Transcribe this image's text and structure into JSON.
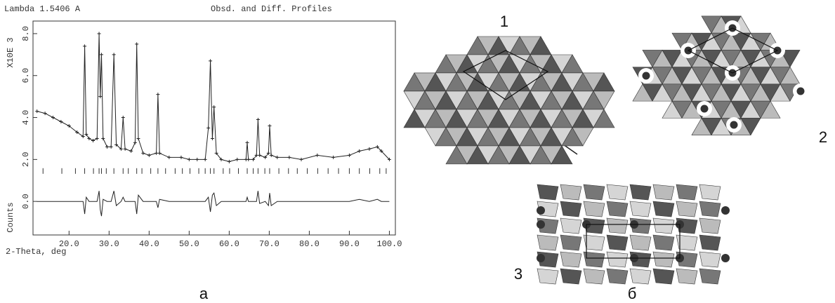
{
  "chart_data": {
    "type": "line",
    "header_left": "Lambda 1.5406 A",
    "header_right": "Obsd. and Diff. Profiles",
    "y_axis_label": "X10E 3",
    "y_axis_label_lower": "Counts",
    "x_axis_label": "2-Theta, deg",
    "x": [
      12,
      14,
      16,
      18,
      20,
      22,
      23.5,
      23.9,
      24.3,
      25,
      26,
      27,
      27.5,
      27.8,
      28.1,
      28.5,
      29.5,
      30.5,
      31.2,
      31.8,
      33,
      33.5,
      34,
      35.5,
      36.5,
      36.9,
      37.3,
      38.5,
      40,
      41.8,
      42.2,
      42.6,
      45,
      48,
      50,
      52,
      54,
      54.8,
      55.3,
      55.8,
      56.2,
      56.8,
      58,
      60,
      62,
      64.2,
      64.5,
      64.8,
      66,
      66.8,
      67.2,
      67.6,
      69,
      69.8,
      70.1,
      70.5,
      72,
      75,
      78,
      82,
      86,
      90,
      92.5,
      95,
      97,
      98,
      100
    ],
    "series": [
      {
        "color": "#222222",
        "values": [
          4.3,
          4.2,
          4.0,
          3.8,
          3.6,
          3.3,
          3.1,
          7.4,
          3.2,
          3.0,
          2.9,
          3.0,
          8.0,
          5.0,
          7.0,
          3.0,
          2.6,
          2.6,
          7.0,
          2.7,
          2.5,
          4.0,
          2.5,
          2.4,
          2.8,
          7.5,
          3.0,
          2.3,
          2.2,
          2.3,
          5.1,
          2.3,
          2.1,
          2.1,
          2.0,
          2.0,
          2.0,
          3.5,
          6.7,
          3.0,
          4.5,
          2.3,
          2.0,
          1.9,
          2.0,
          2.0,
          2.8,
          2.0,
          2.0,
          2.2,
          3.9,
          2.2,
          2.1,
          2.3,
          3.6,
          2.2,
          2.1,
          2.1,
          2.0,
          2.2,
          2.1,
          2.2,
          2.4,
          2.5,
          2.6,
          2.4,
          2.0
        ]
      },
      {
        "color": "#222222",
        "values": [
          0,
          0,
          0,
          0,
          0,
          0,
          0,
          -0.6,
          0.2,
          0,
          0,
          0,
          0.5,
          -0.4,
          -0.7,
          0.1,
          0,
          0,
          0.5,
          -0.2,
          0,
          0.2,
          0,
          0,
          0,
          -0.6,
          0.3,
          0,
          0,
          0,
          -0.3,
          0.1,
          0,
          0,
          0,
          0,
          0,
          0.2,
          -0.5,
          0.3,
          0.4,
          -0.2,
          0,
          0,
          0,
          0,
          0.2,
          0,
          0,
          0,
          0.5,
          -0.1,
          0,
          -0.2,
          0.4,
          -0.2,
          0,
          0,
          0,
          0,
          0,
          0,
          0.1,
          0,
          0.1,
          0,
          0
        ]
      }
    ],
    "reflections": [
      13.5,
      18.2,
      21.6,
      23.9,
      26.1,
      27.5,
      28.1,
      29.3,
      31.2,
      33.5,
      34.8,
      36.9,
      38.2,
      40.4,
      42.2,
      44.1,
      46.5,
      48.3,
      50.2,
      52.4,
      54.0,
      55.3,
      56.2,
      58.5,
      60.1,
      62.3,
      64.5,
      66.0,
      67.2,
      68.9,
      70.1,
      72.4,
      74.8,
      77.0,
      79.5,
      82.1,
      84.7,
      87.3,
      90.0,
      92.5,
      95.1,
      97.6,
      99.2
    ],
    "xlim": [
      11,
      101.5
    ],
    "ylim": [
      -1.6,
      8.6
    ],
    "xticks": [
      {
        "value": 20,
        "label": "20.0"
      },
      {
        "value": 30,
        "label": "30.0"
      },
      {
        "value": 40,
        "label": "40.0"
      },
      {
        "value": 50,
        "label": "50.0"
      },
      {
        "value": 60,
        "label": "60.0"
      },
      {
        "value": 70,
        "label": "70.0"
      },
      {
        "value": 80,
        "label": "80.0"
      },
      {
        "value": 90,
        "label": "90.0"
      },
      {
        "value": 100,
        "label": "100.0"
      }
    ],
    "yticks": [
      {
        "value": 0,
        "label": "0.0"
      },
      {
        "value": 2,
        "label": "2.0"
      },
      {
        "value": 4,
        "label": "4.0"
      },
      {
        "value": 6,
        "label": "6.0"
      },
      {
        "value": 8,
        "label": "8.0"
      }
    ],
    "grid": false
  },
  "panel_labels": {
    "a": "а",
    "b": "б"
  },
  "structure_labels": [
    "1",
    "2",
    "3"
  ]
}
